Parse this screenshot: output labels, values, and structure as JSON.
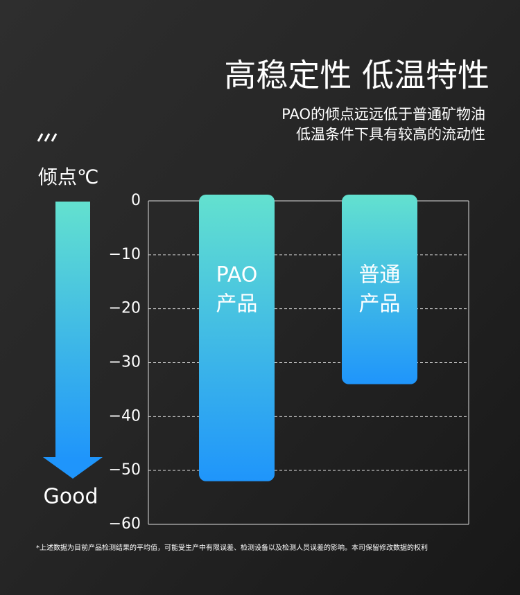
{
  "chart_data": {
    "type": "bar",
    "title": "高稳定性 低温特性",
    "subtitle": [
      "PAO的倾点远远低于普通矿物油",
      "低温条件下具有较高的流动性"
    ],
    "y_label": "倾点℃",
    "arrow_label": "Good",
    "categories": [
      [
        "PAO",
        "产品"
      ],
      [
        "普通",
        "产品"
      ]
    ],
    "values": [
      -52,
      -34
    ],
    "gradient": [
      "#63e1cf",
      "#1f95fb"
    ],
    "ylim": [
      0,
      -60
    ],
    "yticks": [
      0,
      {
        "value": -10,
        "label": "−10"
      },
      {
        "value": -20,
        "label": "−20"
      },
      {
        "value": -30,
        "label": "−30"
      },
      {
        "value": -40,
        "label": "−40"
      },
      {
        "value": -50,
        "label": "−50"
      },
      {
        "value": -60,
        "label": "−60"
      }
    ],
    "grid": true,
    "footnote": "*上述数据为目前产品检测结果的平均值，可能受生产中有限误差、检测设备以及检测人员误差的影响。本司保留修改数据的权利"
  }
}
